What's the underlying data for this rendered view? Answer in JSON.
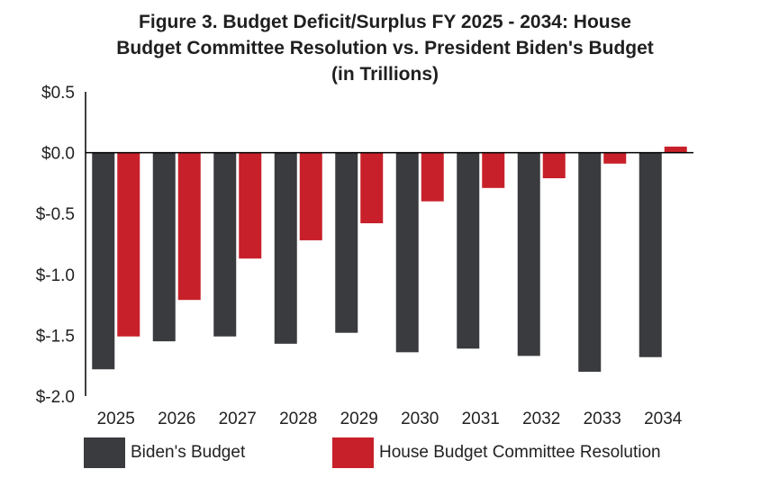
{
  "title": {
    "line1": "Figure 3. Budget Deficit/Surplus FY 2025 - 2034: House",
    "line2": "Budget Committee Resolution vs. President Biden's Budget",
    "line3": "(in Trillions)"
  },
  "colors": {
    "biden": "#3a3b3f",
    "house": "#c8202a",
    "axis": "#000000"
  },
  "chart_data": {
    "type": "bar",
    "title": "Figure 3. Budget Deficit/Surplus FY 2025 - 2034: House Budget Committee Resolution vs. President Biden's Budget (in Trillions)",
    "xlabel": "",
    "ylabel": "",
    "categories": [
      "2025",
      "2026",
      "2027",
      "2028",
      "2029",
      "2030",
      "2031",
      "2032",
      "2033",
      "2034"
    ],
    "ylim": [
      -2.0,
      0.5
    ],
    "yticks": [
      0.5,
      0.0,
      -0.5,
      -1.0,
      -1.5,
      -2.0
    ],
    "ytick_labels": [
      "$0.5",
      "$0.0",
      "$-0.5",
      "$-1.0",
      "$-1.5",
      "$-2.0"
    ],
    "grid": false,
    "legend_position": "bottom",
    "series": [
      {
        "name": "Biden's Budget",
        "values": [
          -1.78,
          -1.55,
          -1.51,
          -1.57,
          -1.48,
          -1.64,
          -1.61,
          -1.67,
          -1.8,
          -1.68
        ]
      },
      {
        "name": "House Budget Committee Resolution",
        "values": [
          -1.51,
          -1.21,
          -0.87,
          -0.72,
          -0.58,
          -0.4,
          -0.29,
          -0.21,
          -0.09,
          0.05
        ]
      }
    ]
  }
}
